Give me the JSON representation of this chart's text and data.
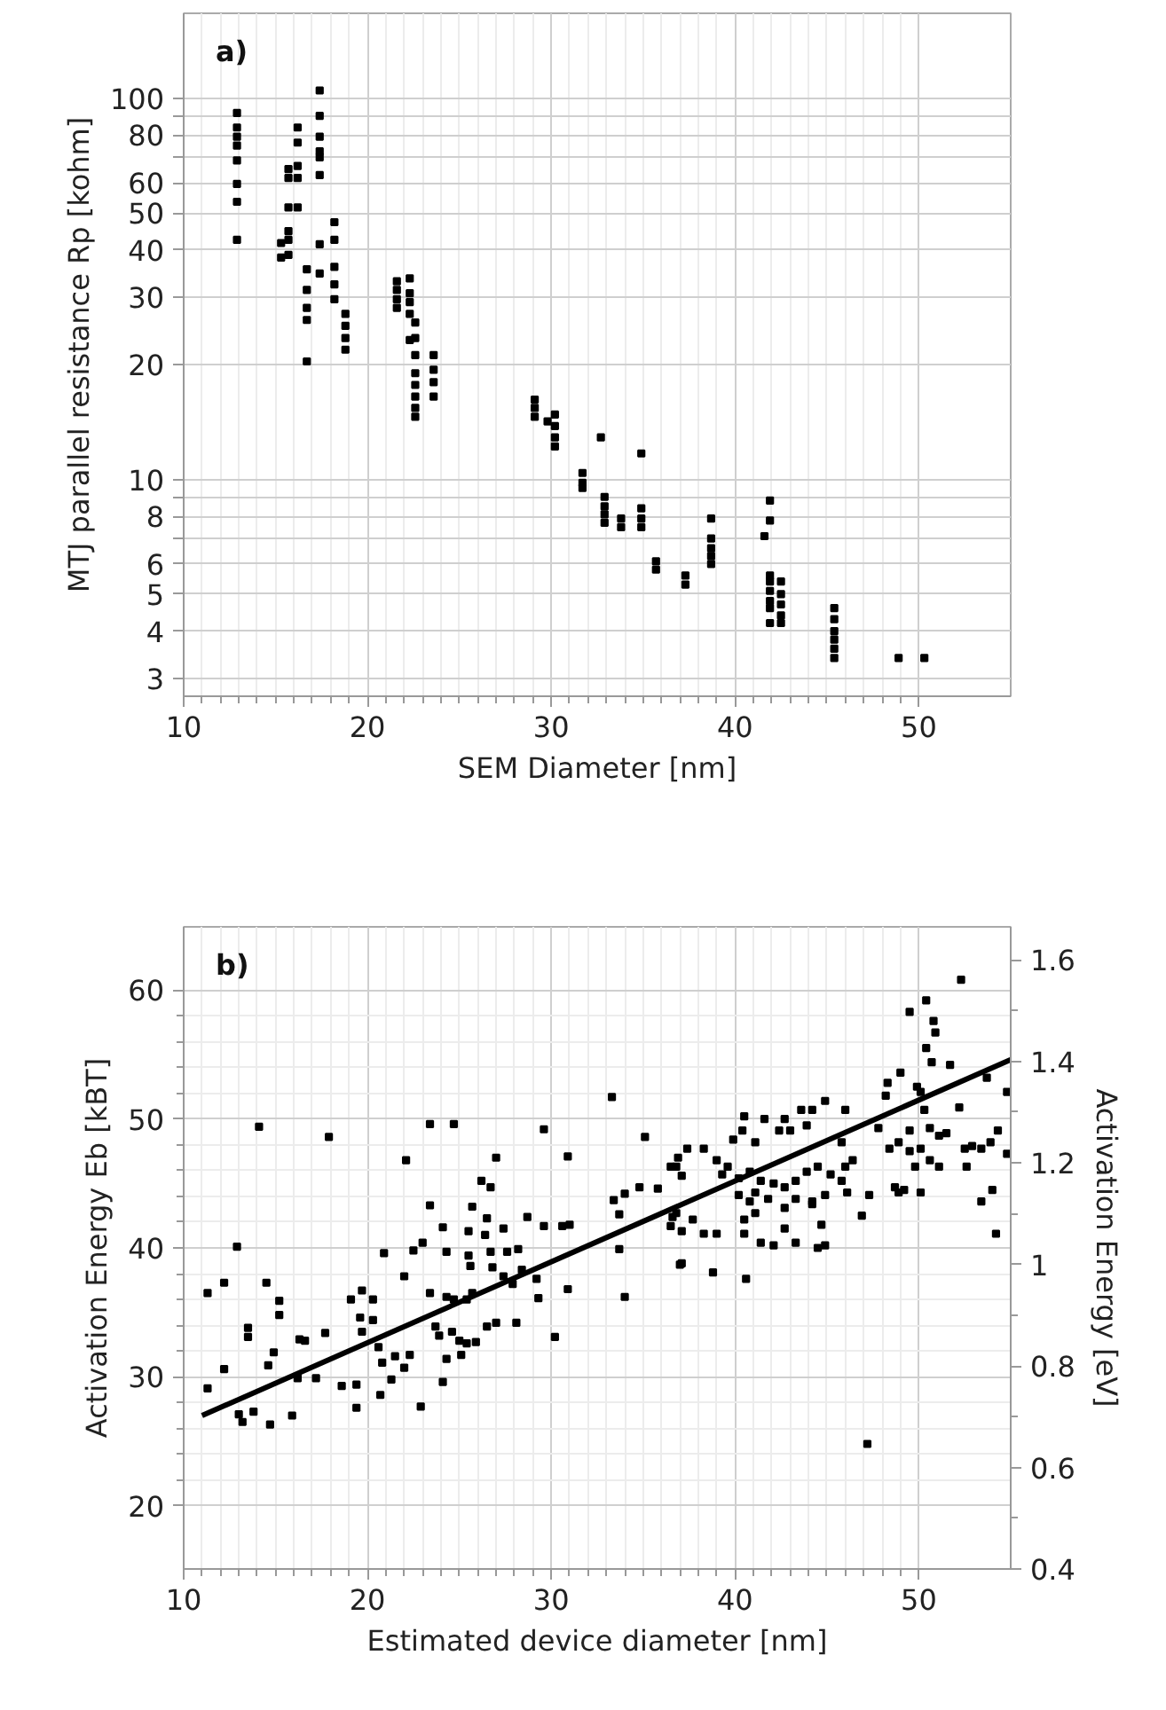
{
  "chart_data": [
    {
      "type": "scatter",
      "annotations": [
        "a)"
      ],
      "xlabel": "SEM Diameter [nm]",
      "ylabel": "MTJ parallel resistance Rp [kohm]",
      "xlim": [
        10,
        55
      ],
      "ylim": [
        2.7,
        167
      ],
      "xticks": [
        10,
        20,
        30,
        40,
        50
      ],
      "yticks": [
        3,
        4,
        5,
        6,
        {
          "value": 7,
          "label": null
        },
        8,
        {
          "value": 9,
          "label": null
        },
        10,
        20,
        30,
        40,
        50,
        60,
        {
          "value": 70,
          "label": null
        },
        80,
        {
          "value": 90,
          "label": null
        },
        100
      ],
      "log": "y",
      "grid": true,
      "marker": "square",
      "series": [
        {
          "color": "#000000",
          "x": [
            12.9,
            12.9,
            12.9,
            12.9,
            12.9,
            12.9,
            12.9,
            12.9,
            15.3,
            15.3,
            15.7,
            15.7,
            15.7,
            15.7,
            15.7,
            15.7,
            16.2,
            16.2,
            16.2,
            16.2,
            16.2,
            16.7,
            16.7,
            16.7,
            16.7,
            16.7,
            17.4,
            17.4,
            17.4,
            17.4,
            17.4,
            17.4,
            17.4,
            17.4,
            18.2,
            18.2,
            18.2,
            18.2,
            18.2,
            18.8,
            18.8,
            18.8,
            18.8,
            21.6,
            21.6,
            21.6,
            21.6,
            22.3,
            22.3,
            22.3,
            22.3,
            22.6,
            22.6,
            22.6,
            22.6,
            22.6,
            22.6,
            22.6,
            22.6,
            22.3,
            23.6,
            23.6,
            23.6,
            23.6,
            29.1,
            29.1,
            29.1,
            29.8,
            30.2,
            30.2,
            30.2,
            30.2,
            32.7,
            31.7,
            31.7,
            31.7,
            32.9,
            32.9,
            32.9,
            32.9,
            33.8,
            33.8,
            34.9,
            34.9,
            34.9,
            34.9,
            35.7,
            35.7,
            37.3,
            37.3,
            38.7,
            38.7,
            38.7,
            38.7,
            38.7,
            41.6,
            41.9,
            41.9,
            41.9,
            41.9,
            41.9,
            41.9,
            41.9,
            41.9,
            42.5,
            42.5,
            42.5,
            42.5,
            42.5,
            45.4,
            45.4,
            45.4,
            45.4,
            45.4,
            45.4,
            48.9,
            50.3
          ],
          "values": [
            91.5,
            83.8,
            79.3,
            75.1,
            68.7,
            59.6,
            53.5,
            42.5,
            41.7,
            38.2,
            65.2,
            61.8,
            51.7,
            44.8,
            42.5,
            38.8,
            83.8,
            76.5,
            66.4,
            61.8,
            51.7,
            35.6,
            31.4,
            28.2,
            26.2,
            20.4,
            104.8,
            89.9,
            79.3,
            72.6,
            70.0,
            62.9,
            41.4,
            34.7,
            47.3,
            42.5,
            36.1,
            32.5,
            29.7,
            27.2,
            25.3,
            23.5,
            21.9,
            33.1,
            31.4,
            29.7,
            28.2,
            33.7,
            30.8,
            29.2,
            27.2,
            25.8,
            23.5,
            21.2,
            19.0,
            17.7,
            16.5,
            15.4,
            14.6,
            23.2,
            21.2,
            19.4,
            18.0,
            16.5,
            16.2,
            15.4,
            14.6,
            14.2,
            14.8,
            13.8,
            12.9,
            12.2,
            12.9,
            10.4,
            9.8,
            9.5,
            9.0,
            8.5,
            8.1,
            7.7,
            7.9,
            7.5,
            11.7,
            8.4,
            7.9,
            7.5,
            6.1,
            5.8,
            5.6,
            5.3,
            7.9,
            7.0,
            6.6,
            6.3,
            6.0,
            7.1,
            8.8,
            7.8,
            5.6,
            5.4,
            5.1,
            4.8,
            4.6,
            4.2,
            5.4,
            5.0,
            4.7,
            4.4,
            4.2,
            4.6,
            4.3,
            4.0,
            3.8,
            3.6,
            3.4,
            3.4,
            3.4
          ]
        }
      ]
    },
    {
      "type": "scatter",
      "annotations": [
        "b)"
      ],
      "xlabel": "Estimated device diameter [nm]",
      "ylabel": "Activation Energy Eb [kBT]",
      "y2label": "Activation Energy [eV]",
      "xlim": [
        10,
        55
      ],
      "ylim": [
        15.1,
        64.9
      ],
      "y2lim": [
        0.4,
        1.665
      ],
      "xticks": [
        10,
        20,
        30,
        40,
        50
      ],
      "yticks": [
        20,
        30,
        40,
        50,
        60
      ],
      "y2ticks": [
        0.4,
        0.6,
        0.8,
        1,
        1.2,
        1.4,
        1.6
      ],
      "grid": true,
      "series": [
        {
          "marker": "square",
          "color": "#000000",
          "x": [
            14.1,
            17.9,
            23.4,
            24.7,
            22.1,
            27.0,
            29.6,
            30.9,
            33.3,
            35.1,
            12.9,
            12.2,
            11.3,
            14.5,
            15.2,
            15.2,
            13.5,
            13.5,
            12.2,
            11.3,
            13.0,
            13.2,
            13.8,
            14.7,
            15.9,
            14.6,
            14.9,
            16.3,
            16.6,
            17.7,
            16.2,
            17.2,
            18.6,
            19.4,
            19.4,
            19.1,
            19.7,
            20.3,
            19.6,
            20.3,
            19.7,
            20.6,
            20.8,
            21.5,
            22.3,
            22.0,
            21.3,
            20.7,
            22.9,
            20.9,
            22.0,
            22.5,
            23.0,
            23.4,
            24.1,
            24.3,
            23.4,
            23.7,
            23.9,
            24.1,
            24.3,
            24.7,
            25.4,
            25.7,
            24.6,
            25.0,
            25.4,
            25.9,
            25.1,
            24.3,
            25.5,
            25.5,
            25.6,
            25.7,
            26.2,
            26.7,
            26.5,
            26.4,
            26.7,
            26.8,
            27.4,
            27.6,
            28.2,
            28.7,
            26.5,
            27.0,
            28.1,
            27.4,
            27.9,
            28.4,
            29.2,
            29.3,
            30.2,
            30.9,
            29.6,
            30.6,
            31.0,
            33.4,
            33.7,
            34.0,
            34.8,
            35.8,
            33.7,
            34.0,
            36.5,
            36.6,
            36.8,
            37.1,
            37.0,
            52.3,
            49.5,
            50.4,
            50.8,
            50.9,
            50.4,
            50.7,
            51.7,
            48.3,
            48.2,
            49.0,
            49.9,
            50.1,
            54.8,
            53.7,
            52.2,
            50.3,
            50.6,
            51.1,
            51.5,
            49.5,
            48.9,
            49.5,
            50.1,
            50.6,
            49.8,
            50.1,
            51.1,
            48.7,
            48.4,
            47.8,
            52.5,
            52.9,
            53.4,
            53.9,
            54.3,
            52.6,
            53.4,
            54.0,
            54.8,
            54.2,
            47.2,
            46.9,
            47.3,
            46.0,
            45.8,
            46.0,
            46.4,
            44.9,
            44.2,
            43.6,
            43.9,
            42.7,
            43.0,
            42.4,
            41.6,
            40.5,
            40.4,
            39.9,
            41.1,
            38.3,
            37.4,
            36.9,
            36.5,
            39.0,
            39.6,
            39.3,
            40.2,
            40.8,
            41.4,
            41.1,
            42.1,
            42.7,
            43.3,
            43.9,
            44.5,
            45.2,
            45.8,
            46.1,
            40.2,
            40.8,
            41.8,
            42.7,
            43.3,
            44.2,
            44.9,
            36.8,
            37.7,
            38.3,
            39.0,
            37.1,
            40.5,
            41.1,
            41.4,
            42.1,
            40.5,
            42.7,
            43.3,
            44.2,
            44.7,
            44.5,
            44.9,
            37.1,
            38.8,
            40.6,
            48.9,
            49.2
          ],
          "values": [
            49.4,
            48.6,
            49.6,
            49.6,
            46.8,
            47.0,
            49.2,
            47.1,
            51.7,
            48.6,
            40.1,
            37.3,
            36.5,
            37.3,
            35.9,
            34.8,
            33.8,
            33.1,
            30.6,
            29.1,
            27.1,
            26.5,
            27.3,
            26.3,
            27.0,
            30.9,
            31.9,
            32.9,
            32.8,
            33.4,
            29.9,
            29.9,
            29.3,
            29.4,
            27.6,
            36.0,
            36.7,
            36.0,
            34.6,
            34.4,
            33.5,
            32.3,
            31.1,
            31.6,
            31.7,
            30.7,
            29.8,
            28.6,
            27.7,
            39.6,
            37.8,
            39.8,
            40.4,
            43.3,
            41.6,
            39.7,
            36.5,
            33.9,
            33.2,
            29.6,
            36.2,
            36.0,
            36.0,
            36.5,
            33.5,
            32.8,
            32.6,
            32.7,
            31.7,
            31.4,
            41.3,
            39.4,
            38.6,
            43.2,
            45.2,
            44.7,
            42.3,
            41.0,
            39.7,
            38.5,
            41.5,
            39.7,
            39.9,
            42.4,
            33.9,
            34.2,
            34.2,
            37.8,
            37.2,
            38.3,
            37.6,
            36.1,
            33.1,
            36.8,
            41.7,
            41.7,
            41.8,
            43.7,
            42.6,
            44.2,
            44.7,
            44.6,
            39.9,
            36.2,
            41.7,
            42.4,
            46.3,
            45.6,
            38.7,
            60.8,
            58.3,
            59.2,
            57.6,
            56.7,
            55.5,
            54.4,
            54.2,
            52.8,
            51.8,
            53.6,
            52.5,
            52.1,
            52.1,
            53.2,
            50.9,
            50.7,
            49.3,
            48.7,
            48.9,
            49.1,
            48.2,
            47.5,
            47.7,
            46.8,
            46.3,
            44.3,
            46.3,
            44.7,
            47.7,
            49.3,
            47.7,
            47.9,
            47.7,
            48.2,
            49.1,
            46.3,
            43.6,
            44.5,
            47.3,
            41.1,
            24.8,
            42.5,
            44.1,
            50.7,
            48.2,
            46.3,
            46.8,
            51.4,
            50.7,
            50.7,
            49.5,
            50.0,
            49.1,
            49.1,
            50.0,
            50.2,
            49.1,
            48.4,
            48.2,
            47.7,
            47.7,
            47.0,
            46.3,
            46.8,
            46.3,
            45.7,
            45.4,
            45.9,
            45.2,
            44.3,
            45.0,
            44.7,
            45.2,
            45.9,
            46.3,
            45.7,
            45.2,
            44.3,
            44.1,
            43.6,
            43.8,
            43.1,
            43.8,
            43.6,
            44.1,
            42.7,
            42.2,
            41.1,
            41.1,
            41.3,
            42.2,
            42.7,
            40.4,
            40.2,
            41.1,
            41.5,
            40.4,
            43.4,
            41.8,
            40.0,
            40.2,
            38.8,
            38.1,
            37.6,
            44.3,
            44.5
          ]
        },
        {
          "type": "line",
          "color": "#000000",
          "x": [
            11,
            55
          ],
          "values": [
            27.0,
            54.6
          ]
        }
      ]
    }
  ]
}
